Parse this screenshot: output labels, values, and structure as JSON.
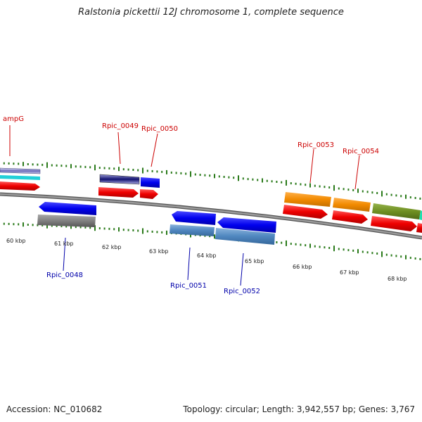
{
  "title": "Ralstonia pickettii 12J chromosome 1, complete sequence",
  "accession": "Accession: NC_010682",
  "summary": "Topology: circular; Length: 3,942,557 bp; Genes: 3,767",
  "colors": {
    "forward_label": "#cc0000",
    "reverse_label": "#0000aa",
    "tick": "#2a7a1a",
    "backbone": "#7a7a7a"
  },
  "axis_labels": [
    "60 kbp",
    "61 kbp",
    "62 kbp",
    "63 kbp",
    "64 kbp",
    "65 kbp",
    "66 kbp",
    "67 kbp",
    "68 kbp"
  ],
  "gene_labels": {
    "forward": [
      "ampG",
      "Rpic_0049",
      "Rpic_0050",
      "Rpic_0053",
      "Rpic_0054"
    ],
    "reverse": [
      "Rpic_0048",
      "Rpic_0051",
      "Rpic_0052"
    ]
  }
}
